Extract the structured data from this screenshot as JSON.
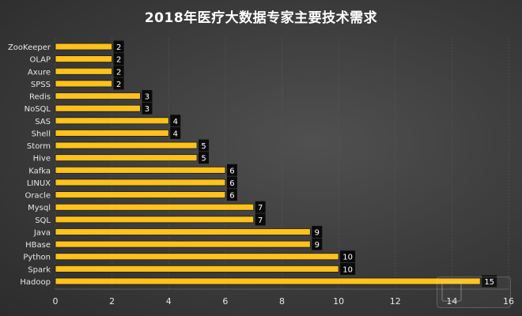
{
  "chart_data": {
    "type": "bar",
    "orientation": "horizontal",
    "title": "2018年医疗大数据专家主要技术需求",
    "xlabel": "",
    "ylabel": "",
    "xlim": [
      0,
      16
    ],
    "xticks": [
      0,
      2,
      4,
      6,
      8,
      10,
      12,
      14,
      16
    ],
    "grid": true,
    "legend": "none",
    "categories": [
      "ZooKeeper",
      "OLAP",
      "Axure",
      "SPSS",
      "Redis",
      "NoSQL",
      "SAS",
      "Shell",
      "Storm",
      "Hive",
      "Kafka",
      "LINUX",
      "Oracle",
      "Mysql",
      "SQL",
      "Java",
      "HBase",
      "Python",
      "Spark",
      "Hadoop"
    ],
    "values": [
      2,
      2,
      2,
      2,
      3,
      3,
      4,
      4,
      5,
      5,
      6,
      6,
      6,
      7,
      7,
      9,
      9,
      10,
      10,
      15
    ],
    "colors": {
      "bar": "#FFC21A",
      "bar_edge": "#1a1a1a",
      "label_bg": "#0a0a0a",
      "label_text": "#ffffff",
      "axis_text": "#e6e6e6",
      "grid": "#5a5a5a"
    }
  }
}
